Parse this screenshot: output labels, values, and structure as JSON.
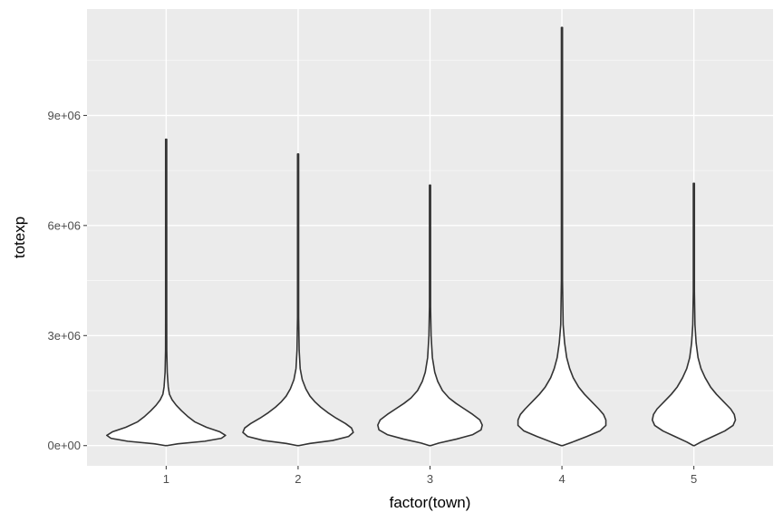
{
  "chart_data": {
    "type": "violin",
    "xlabel": "factor(town)",
    "ylabel": "totexp",
    "categories": [
      "1",
      "2",
      "3",
      "4",
      "5"
    ],
    "ylim": [
      -550000,
      11900000
    ],
    "y_ticks": [
      0,
      3000000,
      6000000,
      9000000
    ],
    "y_tick_labels": [
      "0e+00",
      "3e+06",
      "6e+06",
      "9e+06"
    ],
    "grid": true,
    "violins": [
      {
        "category": "1",
        "min": 0,
        "max": 8350000,
        "profile": [
          [
            0,
            0.0
          ],
          [
            50000,
            0.2
          ],
          [
            120000,
            0.65
          ],
          [
            200000,
            0.93
          ],
          [
            280000,
            1.0
          ],
          [
            380000,
            0.9
          ],
          [
            500000,
            0.68
          ],
          [
            650000,
            0.48
          ],
          [
            800000,
            0.36
          ],
          [
            950000,
            0.26
          ],
          [
            1100000,
            0.17
          ],
          [
            1250000,
            0.1
          ],
          [
            1400000,
            0.055
          ],
          [
            1600000,
            0.035
          ],
          [
            2000000,
            0.018
          ],
          [
            2600000,
            0.01
          ],
          [
            3500000,
            0.006
          ],
          [
            5000000,
            0.004
          ],
          [
            7000000,
            0.003
          ],
          [
            8350000,
            0.002
          ]
        ]
      },
      {
        "category": "2",
        "min": 0,
        "max": 7950000,
        "profile": [
          [
            0,
            0.0
          ],
          [
            60000,
            0.2
          ],
          [
            140000,
            0.58
          ],
          [
            250000,
            0.85
          ],
          [
            360000,
            0.93
          ],
          [
            480000,
            0.9
          ],
          [
            600000,
            0.8
          ],
          [
            750000,
            0.64
          ],
          [
            900000,
            0.5
          ],
          [
            1050000,
            0.38
          ],
          [
            1200000,
            0.28
          ],
          [
            1350000,
            0.2
          ],
          [
            1550000,
            0.13
          ],
          [
            1800000,
            0.07
          ],
          [
            2100000,
            0.035
          ],
          [
            2600000,
            0.018
          ],
          [
            3500000,
            0.008
          ],
          [
            5000000,
            0.005
          ],
          [
            7000000,
            0.003
          ],
          [
            7950000,
            0.002
          ]
        ]
      },
      {
        "category": "3",
        "min": 0,
        "max": 7100000,
        "profile": [
          [
            0,
            0.0
          ],
          [
            70000,
            0.15
          ],
          [
            180000,
            0.45
          ],
          [
            300000,
            0.72
          ],
          [
            430000,
            0.86
          ],
          [
            560000,
            0.88
          ],
          [
            700000,
            0.84
          ],
          [
            850000,
            0.72
          ],
          [
            1000000,
            0.58
          ],
          [
            1150000,
            0.44
          ],
          [
            1300000,
            0.32
          ],
          [
            1500000,
            0.21
          ],
          [
            1750000,
            0.13
          ],
          [
            2000000,
            0.08
          ],
          [
            2400000,
            0.04
          ],
          [
            3000000,
            0.018
          ],
          [
            3800000,
            0.008
          ],
          [
            5000000,
            0.005
          ],
          [
            6500000,
            0.003
          ],
          [
            7100000,
            0.002
          ]
        ]
      },
      {
        "category": "4",
        "min": 0,
        "max": 11400000,
        "profile": [
          [
            0,
            0.0
          ],
          [
            100000,
            0.18
          ],
          [
            250000,
            0.42
          ],
          [
            400000,
            0.64
          ],
          [
            550000,
            0.74
          ],
          [
            700000,
            0.74
          ],
          [
            850000,
            0.7
          ],
          [
            1000000,
            0.62
          ],
          [
            1200000,
            0.5
          ],
          [
            1400000,
            0.38
          ],
          [
            1600000,
            0.28
          ],
          [
            1850000,
            0.19
          ],
          [
            2100000,
            0.13
          ],
          [
            2400000,
            0.08
          ],
          [
            2800000,
            0.045
          ],
          [
            3300000,
            0.02
          ],
          [
            4500000,
            0.008
          ],
          [
            6500000,
            0.004
          ],
          [
            9000000,
            0.003
          ],
          [
            11400000,
            0.002
          ]
        ]
      },
      {
        "category": "5",
        "min": 0,
        "max": 7150000,
        "profile": [
          [
            0,
            0.0
          ],
          [
            100000,
            0.12
          ],
          [
            250000,
            0.32
          ],
          [
            400000,
            0.52
          ],
          [
            550000,
            0.66
          ],
          [
            700000,
            0.7
          ],
          [
            850000,
            0.68
          ],
          [
            1000000,
            0.62
          ],
          [
            1200000,
            0.5
          ],
          [
            1400000,
            0.38
          ],
          [
            1600000,
            0.28
          ],
          [
            1850000,
            0.19
          ],
          [
            2100000,
            0.12
          ],
          [
            2400000,
            0.07
          ],
          [
            2800000,
            0.038
          ],
          [
            3300000,
            0.018
          ],
          [
            4200000,
            0.008
          ],
          [
            5500000,
            0.004
          ],
          [
            7150000,
            0.002
          ]
        ]
      }
    ]
  }
}
